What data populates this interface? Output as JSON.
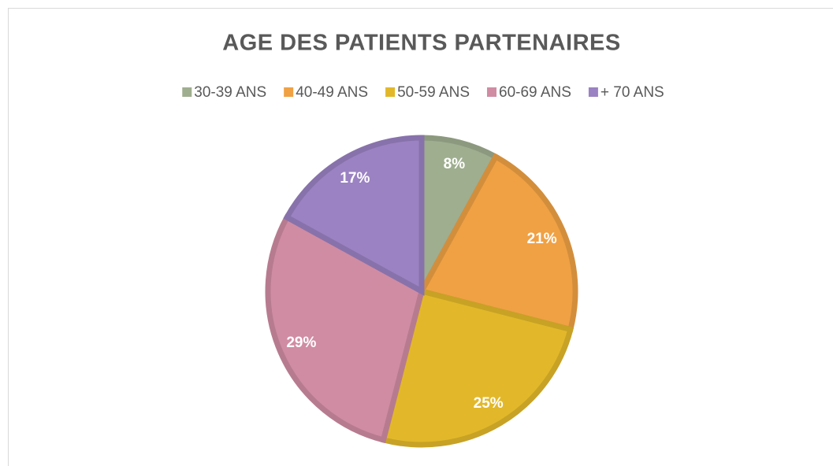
{
  "chart_data": {
    "type": "pie",
    "title": "AGE DES PATIENTS PARTENAIRES",
    "categories": [
      "30-39 ANS",
      "40-49 ANS",
      "50-59 ANS",
      "60-69 ANS",
      "+ 70 ANS"
    ],
    "values": [
      8,
      21,
      25,
      29,
      17
    ],
    "value_labels": [
      "8%",
      "21%",
      "25%",
      "29%",
      "17%"
    ],
    "colors": [
      "#9fae8f",
      "#f0a144",
      "#e2b82a",
      "#d08ca3",
      "#9b82c2"
    ],
    "legend": "top"
  }
}
